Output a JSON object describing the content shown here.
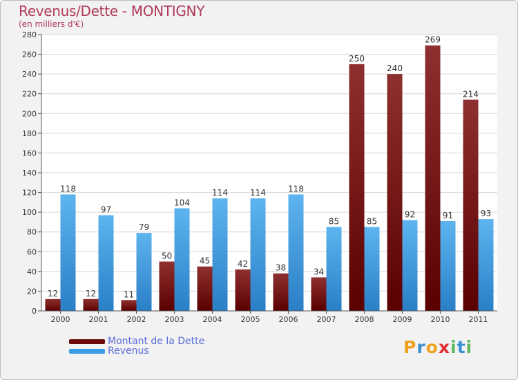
{
  "header": {
    "title": "Revenus/Dette - MONTIGNY",
    "subtitle": "(en milliers d'€)"
  },
  "legend": {
    "items": [
      {
        "label": "Montant de la Dette",
        "color": "#7a1010"
      },
      {
        "label": "Revenus",
        "color": "#3a9ee4"
      }
    ]
  },
  "brand": {
    "letters": [
      "P",
      "r",
      "o",
      "x",
      "i",
      "t",
      "i"
    ],
    "colors": [
      "#f0a020",
      "#3a8fd0",
      "#f0a020",
      "#e03030",
      "#5cb85c",
      "#3a8fd0",
      "#5cb85c"
    ]
  },
  "chart_data": {
    "type": "bar",
    "categories": [
      "2000",
      "2001",
      "2002",
      "2003",
      "2004",
      "2005",
      "2006",
      "2007",
      "2008",
      "2009",
      "2010",
      "2011"
    ],
    "series": [
      {
        "name": "Montant de la Dette",
        "color": "#7a1010",
        "values": [
          12,
          12,
          11,
          50,
          45,
          42,
          38,
          34,
          250,
          240,
          269,
          214
        ]
      },
      {
        "name": "Revenus",
        "color": "#3a9ee4",
        "values": [
          118,
          97,
          79,
          104,
          114,
          114,
          118,
          85,
          85,
          92,
          91,
          93
        ]
      }
    ],
    "ylim": [
      0,
      280
    ],
    "ytick_step": 20,
    "grid": true
  }
}
